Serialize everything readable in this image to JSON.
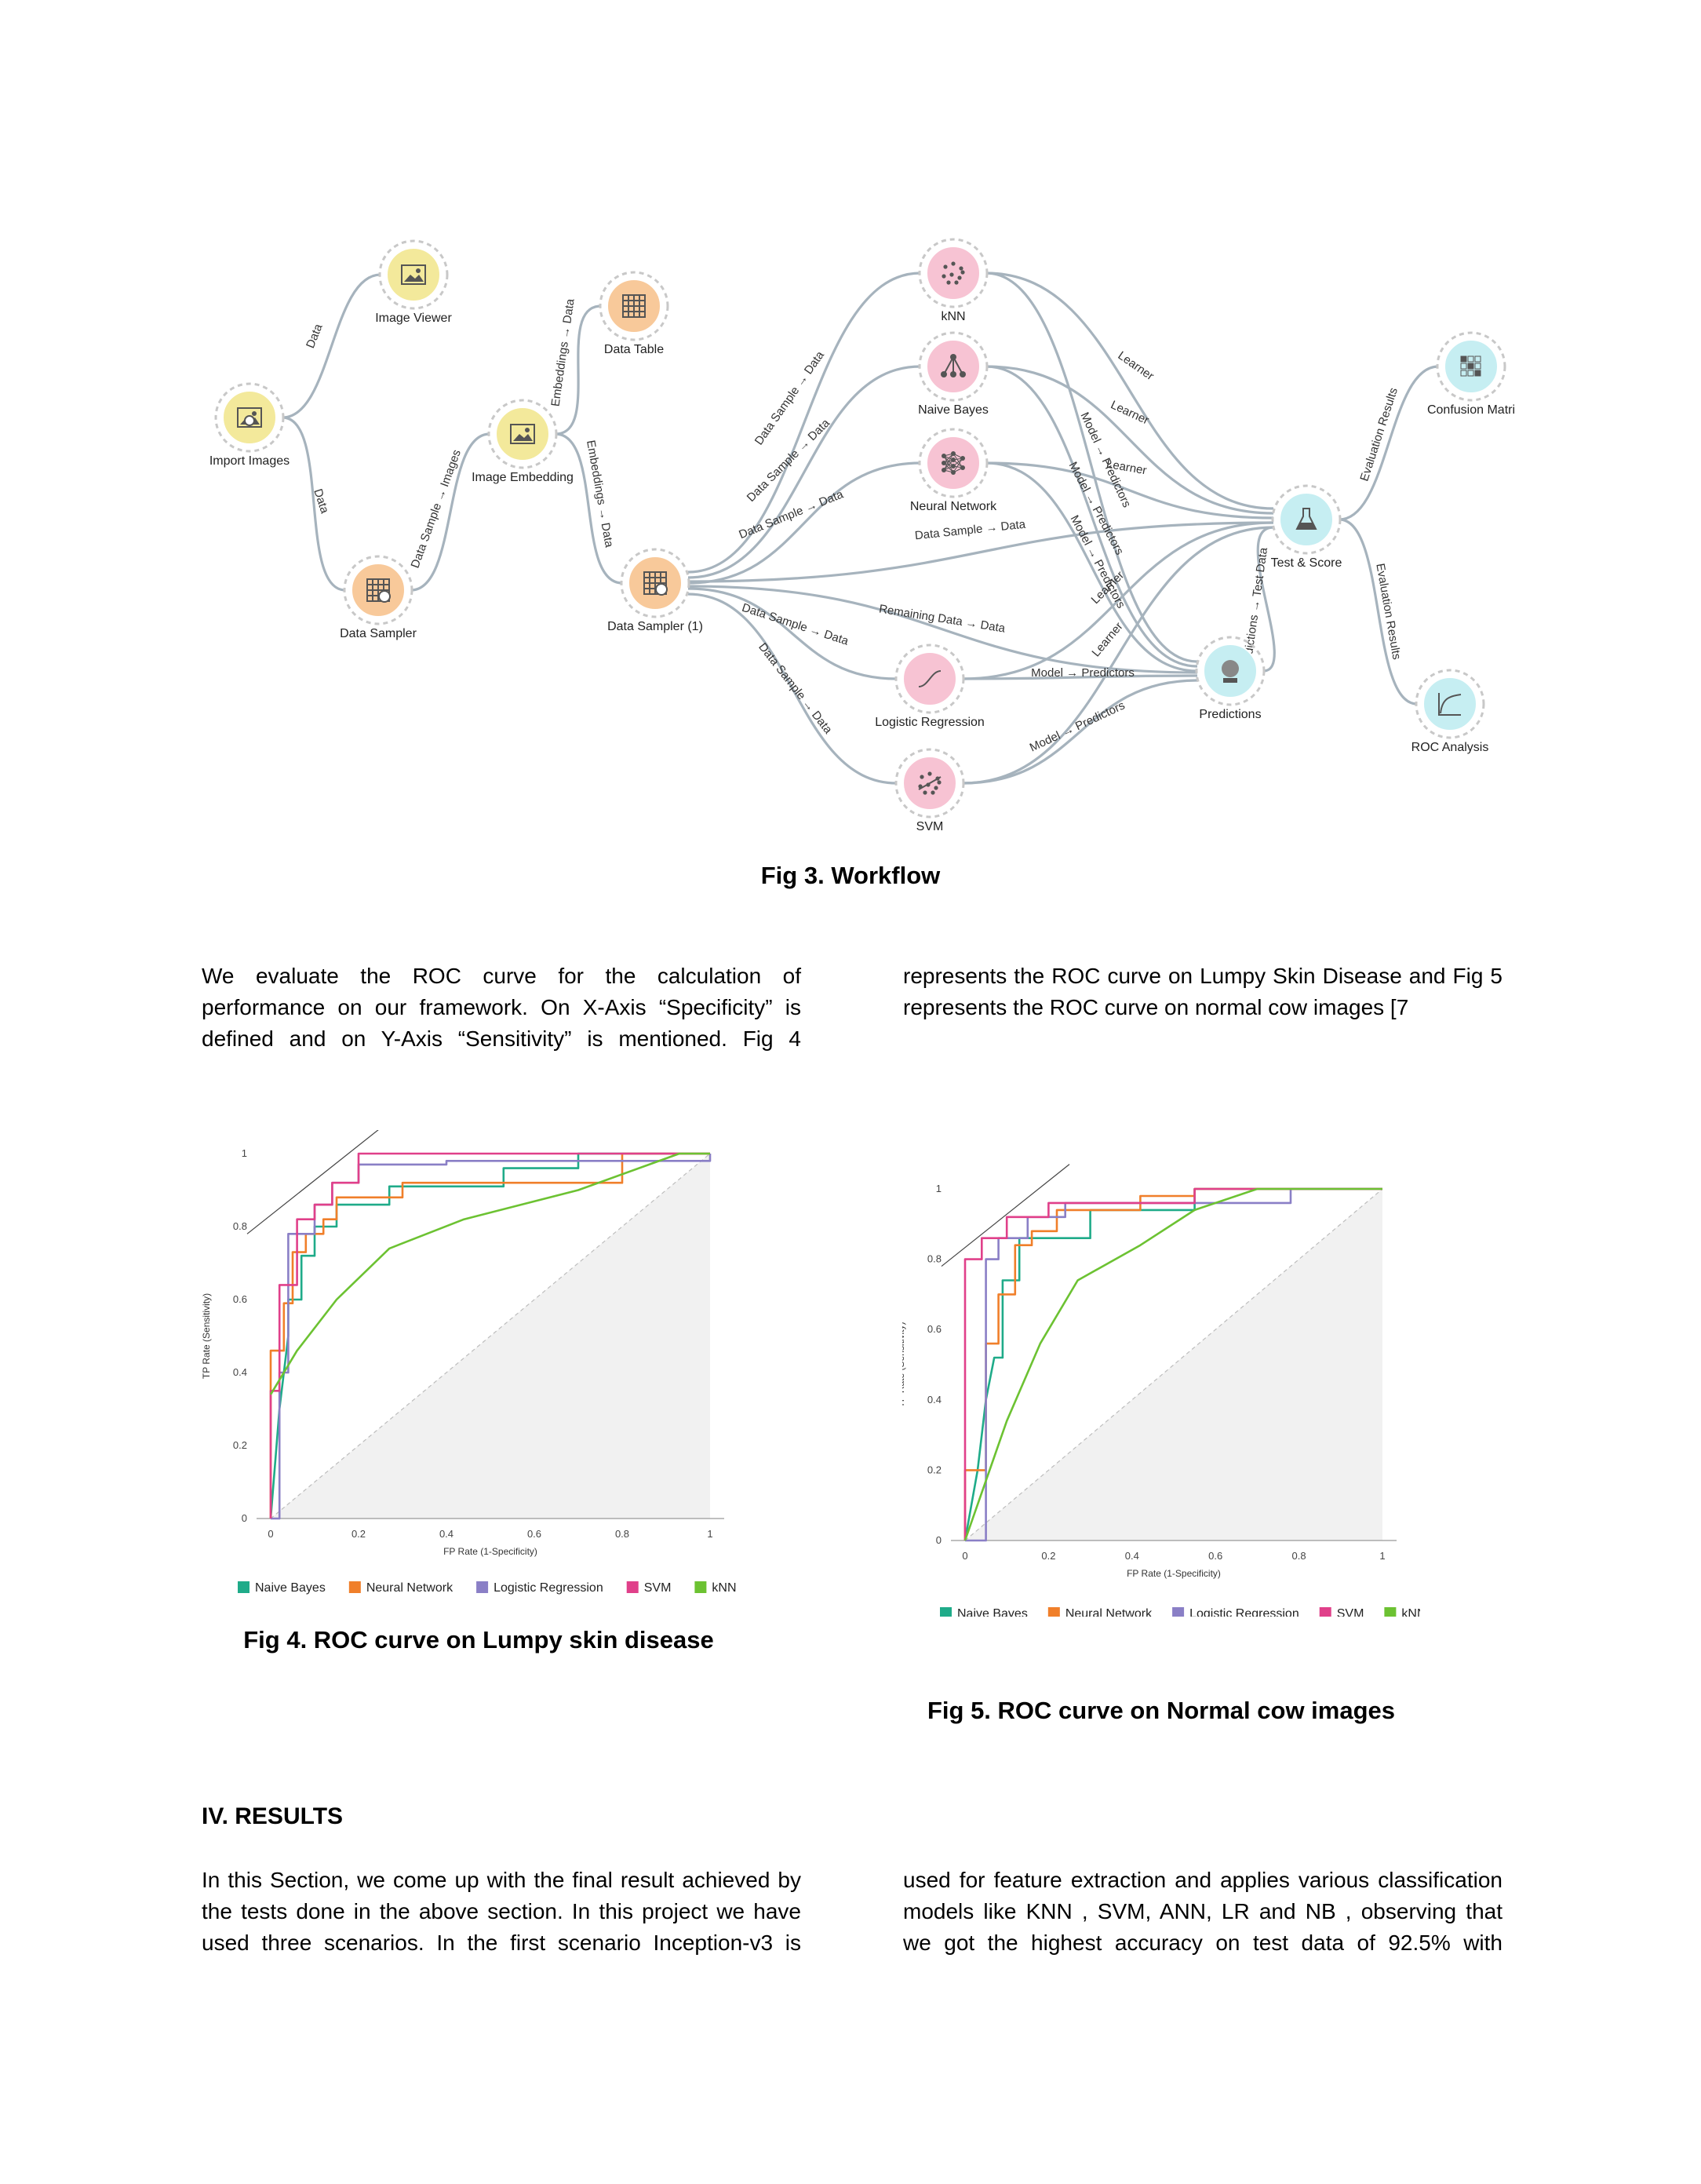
{
  "workflow": {
    "caption": "Fig 3. Workflow",
    "nodes": [
      {
        "id": "import",
        "label": "Import Images",
        "color": "#f3e99b",
        "icon": "image-upload-icon"
      },
      {
        "id": "viewer",
        "label": "Image Viewer",
        "color": "#f3e99b",
        "icon": "image-viewer-icon"
      },
      {
        "id": "sampler",
        "label": "Data Sampler",
        "color": "#f8c99a",
        "icon": "data-sampler-icon"
      },
      {
        "id": "embedding",
        "label": "Image Embedding",
        "color": "#f3e99b",
        "icon": "image-embedding-icon"
      },
      {
        "id": "table",
        "label": "Data Table",
        "color": "#f8c99a",
        "icon": "data-table-icon"
      },
      {
        "id": "sampler1",
        "label": "Data Sampler (1)",
        "color": "#f8c99a",
        "icon": "data-sampler-icon"
      },
      {
        "id": "knn",
        "label": "kNN",
        "color": "#f7c3d3",
        "icon": "knn-icon"
      },
      {
        "id": "nb",
        "label": "Naive Bayes",
        "color": "#f7c3d3",
        "icon": "naive-bayes-icon"
      },
      {
        "id": "nn",
        "label": "Neural Network",
        "color": "#f7c3d3",
        "icon": "neural-network-icon"
      },
      {
        "id": "lr",
        "label": "Logistic Regression",
        "color": "#f7c3d3",
        "icon": "logistic-regression-icon"
      },
      {
        "id": "svm",
        "label": "SVM",
        "color": "#f7c3d3",
        "icon": "svm-icon"
      },
      {
        "id": "test",
        "label": "Test & Score",
        "color": "#c6eef2",
        "icon": "test-score-icon"
      },
      {
        "id": "predictions",
        "label": "Predictions",
        "color": "#c6eef2",
        "icon": "predictions-icon"
      },
      {
        "id": "confusion",
        "label": "Confusion Matri",
        "color": "#c6eef2",
        "icon": "confusion-matrix-icon"
      },
      {
        "id": "roc",
        "label": "ROC Analysis",
        "color": "#c6eef2",
        "icon": "roc-analysis-icon"
      }
    ],
    "edge_labels": {
      "data": "Data",
      "data_sample_images": "Data Sample → Images",
      "embeddings_data": "Embeddings → Data",
      "data_sample_data": "Data Sample → Data",
      "remaining_data": "Remaining Data → Data",
      "learner": "Learner",
      "model_predictors": "Model → Predictors",
      "evaluation_results": "Evaluation Results",
      "predictions_test_data": "Predictions → Test Data"
    }
  },
  "text": {
    "p1_left": [
      "We evaluate the ROC curve for the calculation of",
      "performance on our framework. On X-Axis “Specificity” is",
      "defined and on Y-Axis “Sensitivity” is mentioned. Fig 4"
    ],
    "p1_right": [
      "represents the ROC curve on Lumpy Skin Disease and Fig 5",
      "represents the ROC curve on normal cow images [7"
    ],
    "fig4_caption": "Fig 4. ROC curve on  Lumpy skin disease",
    "fig5_caption": "Fig 5. ROC curve on Normal cow images",
    "results_heading": "IV. RESULTS",
    "p2_left": [
      "In this Section, we come up with the final result achieved by",
      "the tests done in the above section. In this project we have",
      "used three scenarios. In the first scenario Inception-v3 is"
    ],
    "p2_right": [
      "used for feature extraction and applies various classification",
      "models like KNN , SVM, ANN, LR and  NB , observing that",
      "we got the highest accuracy on test data of 92.5% with"
    ]
  },
  "chart_data": [
    {
      "type": "line",
      "title": "",
      "xlabel": "FP Rate (1-Specificity)",
      "ylabel": "TP Rate (Sensitivity)",
      "xlim": [
        0,
        1
      ],
      "ylim": [
        0,
        1
      ],
      "xticks": [
        "0",
        "0.2",
        "0.4",
        "0.6",
        "0.8",
        "1"
      ],
      "yticks": [
        "0",
        "0.2",
        "0.4",
        "0.6",
        "0.8",
        "1"
      ],
      "grid": false,
      "legend": "bottom",
      "series": [
        {
          "name": "Naive Bayes",
          "color": "#1fab89",
          "x": [
            0,
            0.02,
            0.04,
            0.04,
            0.07,
            0.07,
            0.1,
            0.1,
            0.15,
            0.15,
            0.27,
            0.27,
            0.53,
            0.53,
            0.7,
            0.7,
            1
          ],
          "y": [
            0,
            0.3,
            0.5,
            0.6,
            0.6,
            0.72,
            0.72,
            0.8,
            0.8,
            0.86,
            0.86,
            0.91,
            0.91,
            0.96,
            0.96,
            1,
            1
          ]
        },
        {
          "name": "Neural Network",
          "color": "#f07f2a",
          "x": [
            0,
            0,
            0.03,
            0.03,
            0.05,
            0.05,
            0.08,
            0.08,
            0.12,
            0.12,
            0.15,
            0.15,
            0.3,
            0.3,
            0.8,
            0.8,
            1
          ],
          "y": [
            0,
            0.46,
            0.46,
            0.59,
            0.59,
            0.73,
            0.73,
            0.78,
            0.78,
            0.82,
            0.82,
            0.88,
            0.88,
            0.92,
            0.92,
            1,
            1
          ]
        },
        {
          "name": "Logistic Regression",
          "color": "#8a7fc6",
          "x": [
            0,
            0.02,
            0.02,
            0.04,
            0.04,
            0.1,
            0.1,
            0.14,
            0.14,
            0.2,
            0.2,
            0.4,
            0.4,
            1,
            1
          ],
          "y": [
            0,
            0,
            0.4,
            0.4,
            0.78,
            0.78,
            0.86,
            0.86,
            0.92,
            0.92,
            0.97,
            0.97,
            0.98,
            0.98,
            1
          ]
        },
        {
          "name": "SVM",
          "color": "#e0408a",
          "x": [
            0,
            0,
            0.02,
            0.02,
            0.06,
            0.06,
            0.1,
            0.1,
            0.14,
            0.14,
            0.2,
            0.2,
            0.5,
            0.5,
            1
          ],
          "y": [
            0,
            0.35,
            0.35,
            0.64,
            0.64,
            0.82,
            0.82,
            0.86,
            0.86,
            0.92,
            0.92,
            1,
            1,
            1,
            1
          ]
        },
        {
          "name": "kNN",
          "color": "#6cc232",
          "x": [
            0,
            0.06,
            0.15,
            0.27,
            0.44,
            0.7,
            0.93,
            1
          ],
          "y": [
            0.34,
            0.46,
            0.6,
            0.74,
            0.82,
            0.9,
            1,
            1
          ]
        }
      ]
    },
    {
      "type": "line",
      "title": "",
      "xlabel": "FP Rate (1-Specificity)",
      "ylabel": "TP Rate (Sensitivity)",
      "xlim": [
        0,
        1
      ],
      "ylim": [
        0,
        1
      ],
      "xticks": [
        "0",
        "0.2",
        "0.4",
        "0.6",
        "0.8",
        "1"
      ],
      "yticks": [
        "0",
        "0.2",
        "0.4",
        "0.6",
        "0.8",
        "1"
      ],
      "grid": false,
      "legend": "bottom",
      "series": [
        {
          "name": "Naive Bayes",
          "color": "#1fab89",
          "x": [
            0,
            0.03,
            0.05,
            0.07,
            0.09,
            0.09,
            0.13,
            0.13,
            0.3,
            0.3,
            0.55,
            0.55,
            1
          ],
          "y": [
            0,
            0.2,
            0.4,
            0.52,
            0.52,
            0.74,
            0.74,
            0.86,
            0.86,
            0.94,
            0.94,
            1,
            1
          ]
        },
        {
          "name": "Neural Network",
          "color": "#f07f2a",
          "x": [
            0,
            0,
            0.05,
            0.05,
            0.08,
            0.08,
            0.12,
            0.12,
            0.16,
            0.16,
            0.22,
            0.22,
            0.42,
            0.42,
            0.55,
            0.55,
            1
          ],
          "y": [
            0,
            0.2,
            0.2,
            0.56,
            0.56,
            0.7,
            0.7,
            0.84,
            0.84,
            0.88,
            0.88,
            0.94,
            0.94,
            0.98,
            0.98,
            1,
            1
          ]
        },
        {
          "name": "Logistic Regression",
          "color": "#8a7fc6",
          "x": [
            0,
            0.05,
            0.05,
            0.08,
            0.08,
            0.15,
            0.15,
            0.24,
            0.24,
            0.78,
            0.78,
            1
          ],
          "y": [
            0,
            0,
            0.8,
            0.8,
            0.86,
            0.86,
            0.92,
            0.92,
            0.96,
            0.96,
            1,
            1
          ]
        },
        {
          "name": "SVM",
          "color": "#e0408a",
          "x": [
            0,
            0,
            0.04,
            0.04,
            0.1,
            0.1,
            0.2,
            0.2,
            0.55,
            0.55,
            0.7,
            1
          ],
          "y": [
            0,
            0.8,
            0.8,
            0.86,
            0.86,
            0.92,
            0.92,
            0.96,
            0.96,
            1,
            1,
            1
          ]
        },
        {
          "name": "kNN",
          "color": "#6cc232",
          "x": [
            0,
            0.1,
            0.18,
            0.27,
            0.42,
            0.55,
            0.7,
            1
          ],
          "y": [
            0,
            0.34,
            0.56,
            0.74,
            0.84,
            0.94,
            1,
            1
          ]
        }
      ]
    }
  ]
}
